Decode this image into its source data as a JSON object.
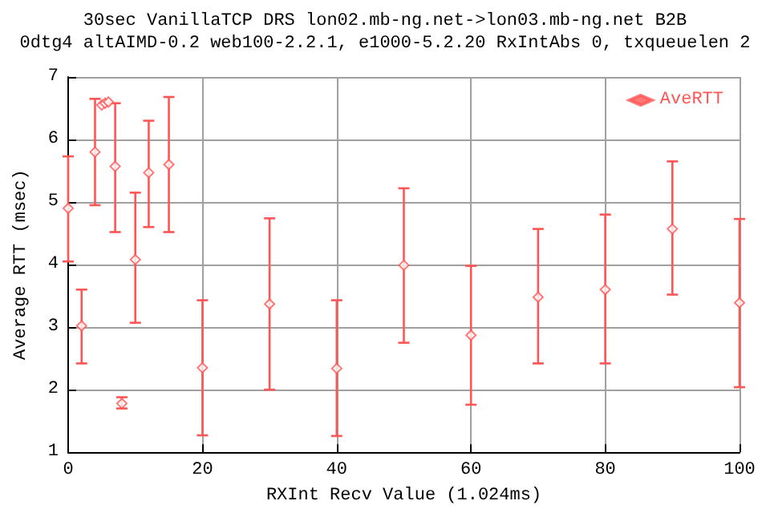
{
  "chart_data": {
    "type": "scatter",
    "title": "30sec VanillaTCP DRS lon02.mb-ng.net->lon03.mb-ng.net B2B",
    "subtitle": "0dtg4 altAIMD-0.2 web100-2.2.1, e1000-5.2.20 RxIntAbs 0, txqueuelen 2",
    "xlabel": "RXInt Recv Value (1.024ms)",
    "ylabel": "Average RTT (msec)",
    "xlim": [
      0,
      100
    ],
    "xticks": [
      0,
      20,
      40,
      60,
      80,
      100
    ],
    "ylim": [
      1,
      7
    ],
    "yticks": [
      1,
      2,
      3,
      4,
      5,
      6,
      7
    ],
    "grid": true,
    "legend": "top right",
    "marker": "diamond",
    "series": [
      {
        "name": "AveRTT",
        "color": "#ff5555",
        "x": [
          0,
          2,
          4,
          5,
          5.5,
          6,
          7,
          8,
          10,
          12,
          15,
          20,
          30,
          40,
          50,
          60,
          70,
          80,
          90,
          100
        ],
        "values": [
          4.9,
          3.02,
          5.8,
          6.55,
          6.58,
          6.6,
          5.57,
          1.78,
          4.08,
          5.47,
          5.6,
          2.35,
          3.37,
          2.34,
          3.99,
          2.87,
          3.48,
          3.6,
          4.57,
          3.39
        ],
        "errors": [
          [
            4.05,
            5.73
          ],
          [
            2.42,
            3.6
          ],
          [
            4.95,
            6.65
          ],
          null,
          null,
          null,
          [
            4.52,
            6.58
          ],
          [
            1.7,
            1.88
          ],
          [
            3.07,
            5.15
          ],
          [
            4.6,
            6.3
          ],
          [
            4.52,
            6.68
          ],
          [
            1.27,
            3.43
          ],
          [
            2.0,
            4.74
          ],
          [
            1.26,
            3.43
          ],
          [
            2.75,
            5.22
          ],
          [
            1.76,
            3.98
          ],
          [
            2.42,
            4.57
          ],
          [
            2.42,
            4.8
          ],
          [
            3.52,
            5.65
          ],
          [
            2.04,
            4.73
          ]
        ]
      }
    ]
  }
}
